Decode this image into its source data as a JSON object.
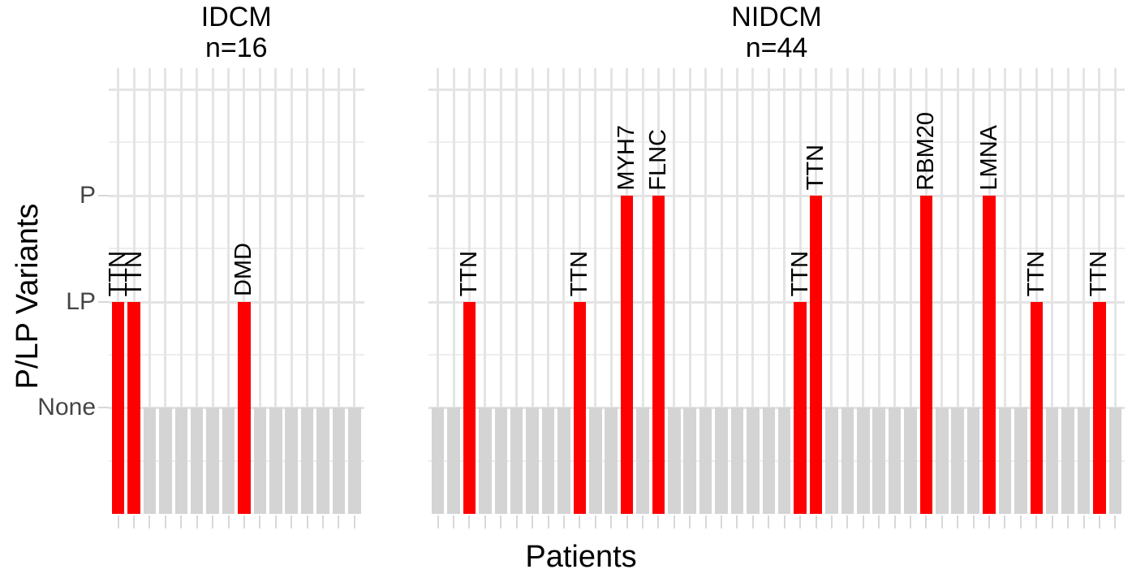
{
  "y_axis": {
    "title": "P/LP Variants",
    "labels": [
      {
        "text": "P",
        "value": 3
      },
      {
        "text": "LP",
        "value": 2
      },
      {
        "text": "None",
        "value": 1
      }
    ]
  },
  "x_axis": {
    "title": "Patients"
  },
  "colors": {
    "variant_bar": "#ff0000",
    "none_bar": "#d4d4d4",
    "grid_major": "#e4e4e4",
    "grid_minor": "#eeeeee",
    "tick": "#d8d8d8",
    "axis_text": "#454545",
    "title_text": "#000000"
  },
  "chart_data": {
    "type": "bar",
    "orientation": "vertical",
    "grid": true,
    "value_levels": {
      "None": 1,
      "LP": 2,
      "P": 3
    },
    "y_level_order": [
      "None",
      "LP",
      "P"
    ],
    "facets": [
      {
        "title": "IDCM",
        "subtitle": "n=16",
        "n_patients": 16,
        "bars": [
          {
            "gene": "TTN",
            "variant": "LP"
          },
          {
            "gene": "TTN",
            "variant": "LP"
          },
          {
            "variant": "None"
          },
          {
            "variant": "None"
          },
          {
            "variant": "None"
          },
          {
            "variant": "None"
          },
          {
            "variant": "None"
          },
          {
            "variant": "None"
          },
          {
            "gene": "DMD",
            "variant": "LP"
          },
          {
            "variant": "None"
          },
          {
            "variant": "None"
          },
          {
            "variant": "None"
          },
          {
            "variant": "None"
          },
          {
            "variant": "None"
          },
          {
            "variant": "None"
          },
          {
            "variant": "None"
          }
        ]
      },
      {
        "title": "NIDCM",
        "subtitle": "n=44",
        "n_patients": 44,
        "bars": [
          {
            "variant": "None"
          },
          {
            "variant": "None"
          },
          {
            "gene": "TTN",
            "variant": "LP"
          },
          {
            "variant": "None"
          },
          {
            "variant": "None"
          },
          {
            "variant": "None"
          },
          {
            "variant": "None"
          },
          {
            "variant": "None"
          },
          {
            "variant": "None"
          },
          {
            "gene": "TTN",
            "variant": "LP"
          },
          {
            "variant": "None"
          },
          {
            "variant": "None"
          },
          {
            "gene": "MYH7",
            "variant": "P"
          },
          {
            "variant": "None"
          },
          {
            "gene": "FLNC",
            "variant": "P"
          },
          {
            "variant": "None"
          },
          {
            "variant": "None"
          },
          {
            "variant": "None"
          },
          {
            "variant": "None"
          },
          {
            "variant": "None"
          },
          {
            "variant": "None"
          },
          {
            "variant": "None"
          },
          {
            "variant": "None"
          },
          {
            "gene": "TTN",
            "variant": "LP"
          },
          {
            "gene": "TTN",
            "variant": "P"
          },
          {
            "variant": "None"
          },
          {
            "variant": "None"
          },
          {
            "variant": "None"
          },
          {
            "variant": "None"
          },
          {
            "variant": "None"
          },
          {
            "variant": "None"
          },
          {
            "gene": "RBM20",
            "variant": "P"
          },
          {
            "variant": "None"
          },
          {
            "variant": "None"
          },
          {
            "variant": "None"
          },
          {
            "gene": "LMNA",
            "variant": "P"
          },
          {
            "variant": "None"
          },
          {
            "variant": "None"
          },
          {
            "gene": "TTN",
            "variant": "LP"
          },
          {
            "variant": "None"
          },
          {
            "variant": "None"
          },
          {
            "variant": "None"
          },
          {
            "gene": "TTN",
            "variant": "LP"
          },
          {
            "variant": "None"
          }
        ]
      }
    ]
  }
}
